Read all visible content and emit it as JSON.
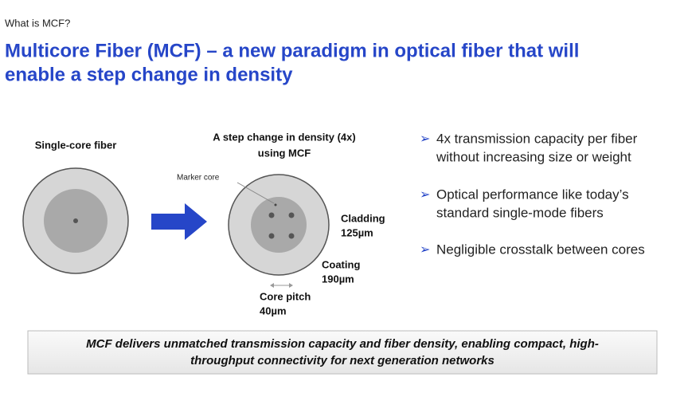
{
  "header": {
    "kicker": "What is MCF?",
    "title_lines": [
      "Multicore Fiber (MCF) – a new paradigm in optical fiber that will",
      "enable a step change in density"
    ]
  },
  "diagram": {
    "left_label": "Single-core fiber",
    "right_label_lines": [
      "A step change in density (4x)",
      "using MCF"
    ],
    "marker_core": "Marker core",
    "cladding": [
      "Cladding",
      "125µm"
    ],
    "coating": [
      "Coating",
      "190µm"
    ],
    "core_pitch": [
      "Core pitch",
      "40µm"
    ]
  },
  "bullets": [
    [
      "4x transmission capacity per fiber",
      "without increasing size or weight"
    ],
    [
      "Optical performance like today’s",
      "standard single-mode fibers"
    ],
    [
      "Negligible crosstalk between cores"
    ]
  ],
  "footer": {
    "lines": [
      "MCF delivers unmatched transmission capacity and fiber density, enabling compact, high-",
      "throughput connectivity for next generation networks"
    ]
  }
}
